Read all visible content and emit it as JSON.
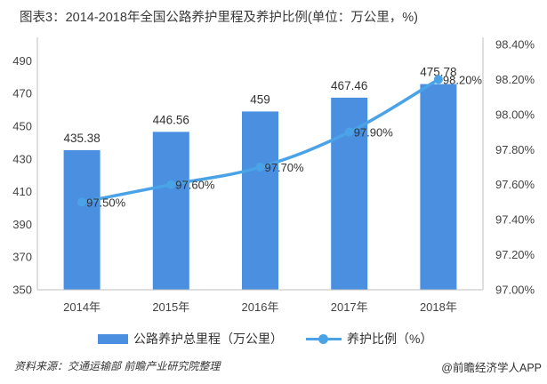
{
  "title": "图表3：2014-2018年全国公路养护里程及养护比例(单位：万公里，%)",
  "chart_data": {
    "type": "bar+line",
    "categories": [
      "2014年",
      "2015年",
      "2016年",
      "2017年",
      "2018年"
    ],
    "series": [
      {
        "name": "公路养护总里程（万公里）",
        "type": "bar",
        "axis": "left",
        "values": [
          435.38,
          446.56,
          459,
          467.46,
          475.78
        ],
        "labels": [
          "435.38",
          "446.56",
          "459",
          "467.46",
          "475.78"
        ],
        "color": "#4a8fe0"
      },
      {
        "name": "养护比例（%）",
        "type": "line",
        "axis": "right",
        "values": [
          97.5,
          97.6,
          97.7,
          97.9,
          98.2
        ],
        "labels": [
          "97.50%",
          "97.60%",
          "97.70%",
          "97.90%",
          "98.20%"
        ],
        "color": "#4aa3e6"
      }
    ],
    "y_left": {
      "min": 350,
      "max": 500,
      "ticks": [
        350,
        370,
        390,
        410,
        430,
        450,
        470,
        490
      ]
    },
    "y_right": {
      "min": 97.0,
      "max": 98.4,
      "ticks": [
        "97.00%",
        "97.20%",
        "97.40%",
        "97.60%",
        "97.80%",
        "98.00%",
        "98.20%",
        "98.40%"
      ],
      "tick_values": [
        97.0,
        97.2,
        97.4,
        97.6,
        97.8,
        98.0,
        98.2,
        98.4
      ]
    },
    "legend_position": "bottom",
    "grid": false
  },
  "source": "资料来源：交通运输部 前瞻产业研究院整理",
  "brand": "@前瞻经济学人APP"
}
